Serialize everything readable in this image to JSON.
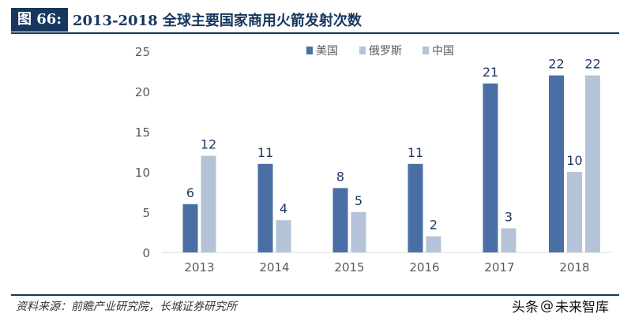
{
  "header": {
    "label": "图 66:",
    "title": "2013-2018 全球主要国家商用火箭发射次数"
  },
  "footer": {
    "source": "资料来源：前瞻产业研究院，长城证券研究所",
    "watermark_prefix": "头条",
    "watermark_at": "@",
    "watermark_name": "未来智库"
  },
  "colors": {
    "accent": "#17375e",
    "series_usa": "#4a6fa5",
    "series_russia": "#b4c3d7",
    "series_china": "#b4c3d7",
    "axis_text": "#595959",
    "label_text": "#1f3864"
  },
  "chart_data": {
    "type": "bar",
    "categories": [
      "2013",
      "2014",
      "2015",
      "2016",
      "2017",
      "2018"
    ],
    "series": [
      {
        "name": "美国",
        "values": [
          6,
          11,
          8,
          11,
          21,
          22
        ]
      },
      {
        "name": "俄罗斯",
        "values": [
          12,
          4,
          5,
          2,
          3,
          10
        ]
      },
      {
        "name": "中国",
        "values": [
          0,
          0,
          0,
          0,
          0,
          22
        ]
      }
    ],
    "yticks": [
      "0",
      "5",
      "10",
      "15",
      "20",
      "25"
    ],
    "ylim": [
      0,
      25
    ],
    "grid": false,
    "legend_position": "top-center",
    "data_labels": true
  }
}
